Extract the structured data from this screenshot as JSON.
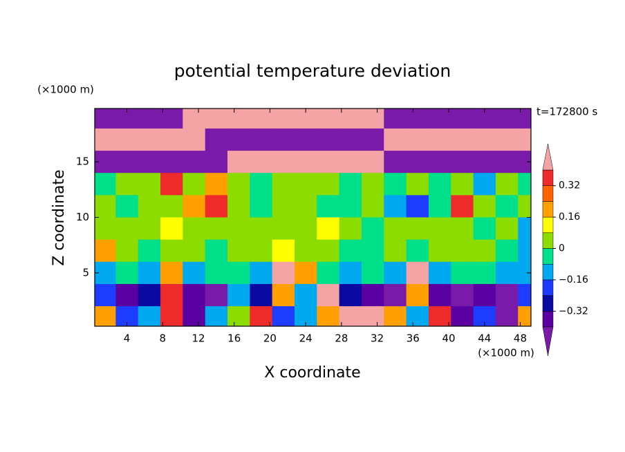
{
  "chart_data": {
    "type": "contourf",
    "title": "potential temperature deviation",
    "x_label": "X coordinate",
    "y_label": "Z coordinate",
    "x_unit": "(×1000 m)",
    "y_unit": "(×1000 m)",
    "time_label": "t=172800 s",
    "xlim": [
      0.4,
      49.2
    ],
    "ylim": [
      0.2,
      19.8
    ],
    "xticks": [
      4,
      8,
      12,
      16,
      20,
      24,
      28,
      32,
      36,
      40,
      44,
      48
    ],
    "yticks": [
      5,
      10,
      15
    ],
    "colorbar": {
      "levels": [
        -0.4,
        -0.32,
        -0.24,
        -0.16,
        -0.08,
        0,
        0.08,
        0.16,
        0.24,
        0.32,
        0.4
      ],
      "colors": [
        "#5a00a0",
        "#0a0aa0",
        "#1e3cff",
        "#00a8f0",
        "#00e08a",
        "#8cdc00",
        "#ffff00",
        "#ffa000",
        "#ff6400",
        "#ee2a2a"
      ],
      "under_color": "#7a1aa8",
      "over_color": "#f4a4a4",
      "ticks": [
        {
          "value": -0.32,
          "label": "−0.32"
        },
        {
          "value": -0.16,
          "label": "−0.16"
        },
        0,
        0.16,
        0.32
      ]
    },
    "field": {
      "x": [
        1.5,
        4,
        6.5,
        9,
        11.5,
        14,
        16.5,
        19,
        21.5,
        24,
        26.5,
        29,
        31.5,
        34,
        36.5,
        39,
        41.5,
        44,
        46.5,
        49
      ],
      "z": [
        19,
        17,
        15,
        13,
        11,
        9,
        7,
        5,
        3,
        1
      ],
      "values": [
        [
          -0.45,
          -0.45,
          -0.45,
          -0.45,
          0.45,
          0.45,
          0.45,
          0.45,
          0.45,
          0.45,
          0.45,
          0.45,
          0.45,
          -0.45,
          -0.45,
          -0.45,
          -0.45,
          -0.45,
          -0.45,
          -0.45
        ],
        [
          0.45,
          0.45,
          0.45,
          0.45,
          0.45,
          -0.45,
          -0.45,
          -0.45,
          -0.45,
          -0.45,
          -0.45,
          -0.45,
          -0.45,
          0.45,
          0.45,
          0.45,
          0.45,
          0.45,
          0.45,
          0.45
        ],
        [
          -0.45,
          -0.45,
          -0.45,
          -0.45,
          -0.45,
          -0.45,
          0.45,
          0.45,
          0.45,
          0.45,
          0.45,
          0.45,
          0.45,
          -0.45,
          -0.45,
          -0.45,
          -0.45,
          -0.45,
          -0.45,
          -0.45
        ],
        [
          -0.04,
          0.04,
          0.04,
          0.36,
          0.04,
          0.2,
          0.04,
          -0.04,
          0.04,
          0.04,
          0.04,
          -0.04,
          0.04,
          -0.04,
          0.04,
          -0.04,
          0.04,
          -0.12,
          0.04,
          -0.04
        ],
        [
          0.04,
          -0.04,
          0.04,
          0.04,
          0.2,
          0.36,
          0.04,
          -0.04,
          0.04,
          0.04,
          -0.04,
          -0.04,
          0.04,
          -0.12,
          -0.2,
          -0.04,
          0.36,
          0.04,
          -0.04,
          0.04
        ],
        [
          0.04,
          0.04,
          0.04,
          0.12,
          0.04,
          0.04,
          0.04,
          0.04,
          0.04,
          0.04,
          0.12,
          0.04,
          -0.04,
          0.04,
          0.04,
          0.04,
          0.04,
          -0.04,
          0.04,
          -0.12
        ],
        [
          0.2,
          0.04,
          -0.04,
          0.04,
          0.04,
          -0.04,
          0.04,
          0.04,
          0.12,
          0.04,
          0.04,
          -0.04,
          -0.04,
          0.04,
          -0.04,
          0.04,
          0.04,
          0.04,
          -0.04,
          -0.12
        ],
        [
          -0.12,
          -0.04,
          -0.12,
          0.2,
          -0.12,
          -0.04,
          -0.04,
          -0.12,
          0.45,
          0.2,
          -0.04,
          -0.12,
          -0.04,
          -0.12,
          0.45,
          -0.12,
          -0.04,
          -0.04,
          -0.12,
          -0.12
        ],
        [
          -0.2,
          -0.36,
          -0.28,
          0.36,
          -0.36,
          -0.45,
          -0.12,
          -0.28,
          0.2,
          -0.12,
          0.45,
          -0.28,
          -0.36,
          -0.45,
          0.2,
          -0.36,
          -0.45,
          -0.36,
          -0.45,
          -0.2
        ],
        [
          0.2,
          -0.2,
          -0.12,
          0.36,
          -0.36,
          -0.12,
          0.04,
          0.36,
          -0.2,
          -0.12,
          0.2,
          0.45,
          0.45,
          0.2,
          -0.12,
          0.36,
          -0.36,
          -0.2,
          -0.45,
          0.2
        ]
      ]
    }
  }
}
